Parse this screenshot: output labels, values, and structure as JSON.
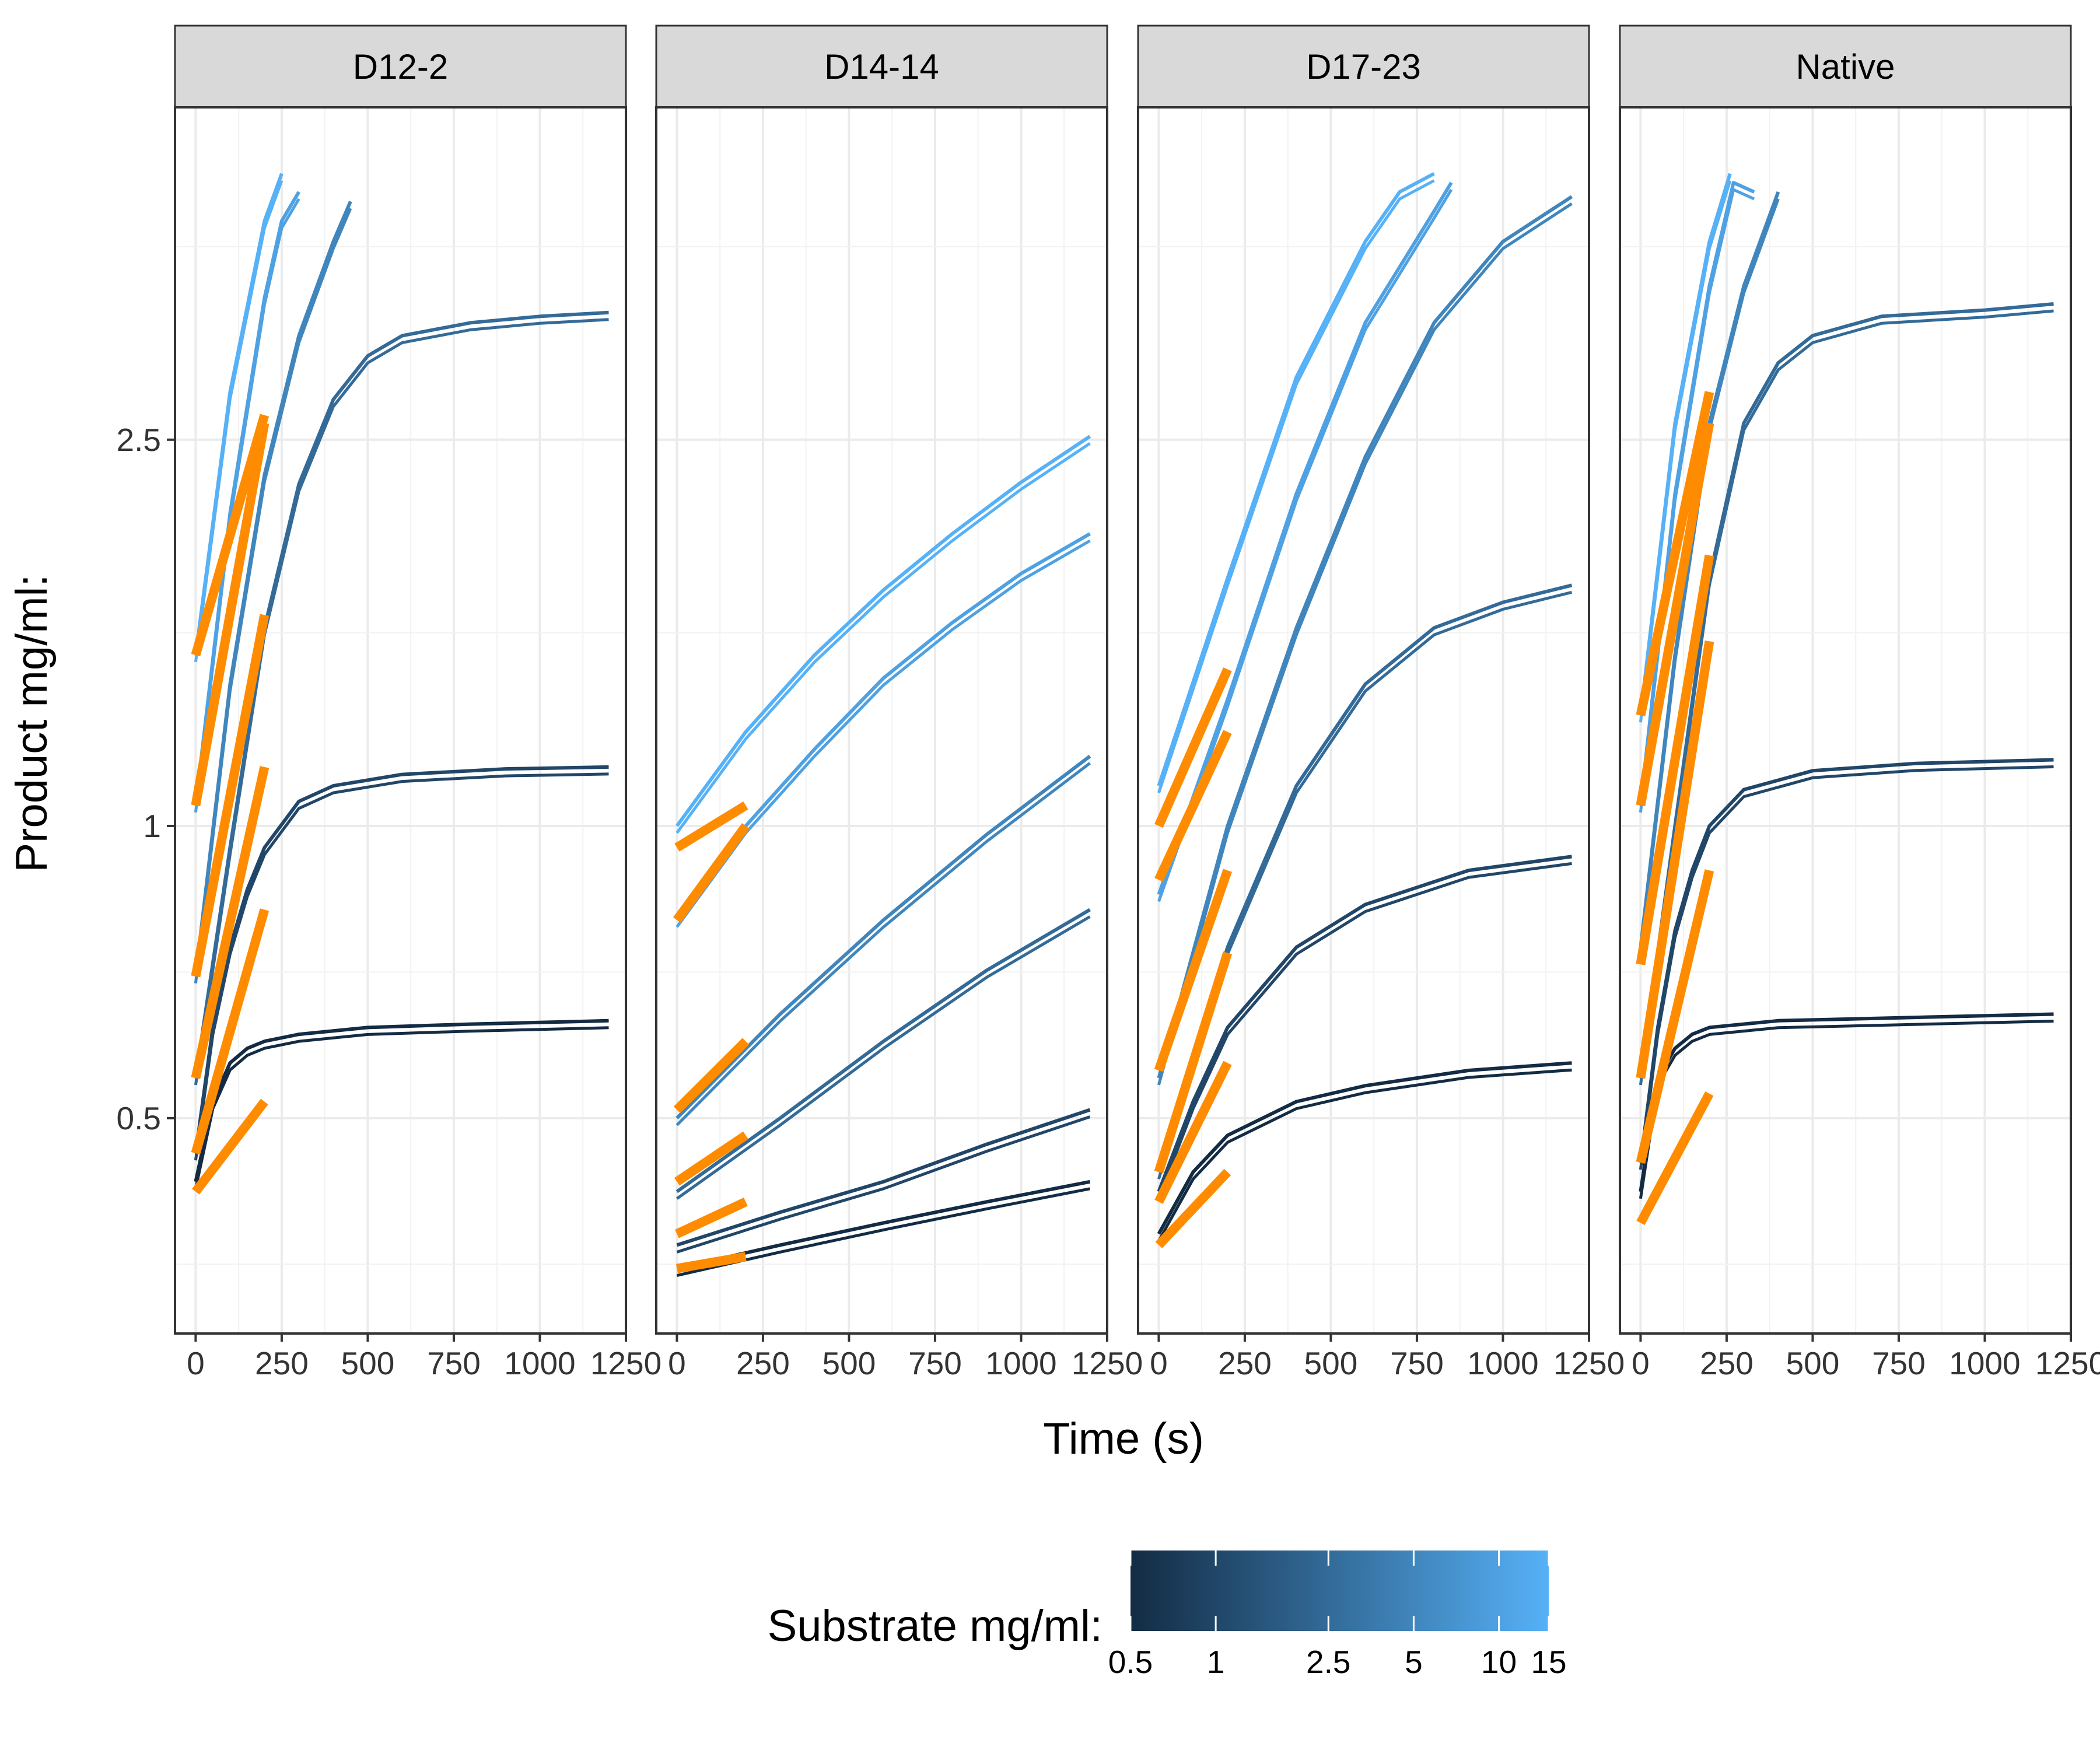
{
  "chart_data": {
    "type": "line",
    "facets": [
      "D12-2",
      "D14-14",
      "D17-23",
      "Native"
    ],
    "xlabel": "Time (s)",
    "ylabel": "Product mg/ml:",
    "x_ticks": [
      "0",
      "250",
      "500",
      "750",
      "1000",
      "1250"
    ],
    "x_tick_values": [
      0,
      250,
      500,
      750,
      1000,
      1250
    ],
    "xlim": [
      -60,
      1250
    ],
    "y_scale": "log",
    "y_ticks": [
      "0.5",
      "1",
      "2.5"
    ],
    "y_tick_values": [
      0.5,
      1,
      2.5
    ],
    "ylim": [
      0.3,
      5.5
    ],
    "grid": true,
    "legend": {
      "title": "Substrate mg/ml:",
      "position": "bottom",
      "type": "colorbar",
      "scale": "log",
      "low_color": "#132B43",
      "high_color": "#56B1F7",
      "ticks": [
        "0.5",
        "1",
        "2.5",
        "5",
        "10",
        "15"
      ],
      "tick_values": [
        0.5,
        1,
        2.5,
        5,
        10,
        15
      ]
    },
    "fit_color": "#FF8C00",
    "panels": [
      {
        "facet": "D12-2",
        "series": [
          {
            "substrate": 0.5,
            "points": [
              [
                0,
                0.43
              ],
              [
                50,
                0.52
              ],
              [
                100,
                0.57
              ],
              [
                150,
                0.59
              ],
              [
                200,
                0.6
              ],
              [
                300,
                0.61
              ],
              [
                500,
                0.62
              ],
              [
                800,
                0.625
              ],
              [
                1200,
                0.63
              ]
            ],
            "fit": [
              [
                0,
                0.42
              ],
              [
                200,
                0.52
              ]
            ]
          },
          {
            "substrate": 1,
            "points": [
              [
                0,
                0.46
              ],
              [
                50,
                0.62
              ],
              [
                100,
                0.75
              ],
              [
                150,
                0.86
              ],
              [
                200,
                0.95
              ],
              [
                300,
                1.06
              ],
              [
                400,
                1.1
              ],
              [
                600,
                1.13
              ],
              [
                900,
                1.145
              ],
              [
                1200,
                1.15
              ]
            ],
            "fit": [
              [
                0,
                0.46
              ],
              [
                200,
                0.82
              ]
            ]
          },
          {
            "substrate": 2.5,
            "points": [
              [
                0,
                0.55
              ],
              [
                100,
                0.95
              ],
              [
                200,
                1.6
              ],
              [
                300,
                2.25
              ],
              [
                400,
                2.75
              ],
              [
                500,
                3.05
              ],
              [
                600,
                3.2
              ],
              [
                800,
                3.3
              ],
              [
                1000,
                3.35
              ],
              [
                1200,
                3.38
              ]
            ],
            "fit": [
              [
                0,
                0.55
              ],
              [
                200,
                1.15
              ]
            ]
          },
          {
            "substrate": 5,
            "points": [
              [
                0,
                0.7
              ],
              [
                100,
                1.4
              ],
              [
                200,
                2.3
              ],
              [
                300,
                3.2
              ],
              [
                400,
                4.0
              ],
              [
                450,
                4.4
              ]
            ],
            "fit": [
              [
                0,
                0.7
              ],
              [
                200,
                1.65
              ]
            ]
          },
          {
            "substrate": 10,
            "points": [
              [
                0,
                1.05
              ],
              [
                100,
                2.1
              ],
              [
                200,
                3.5
              ],
              [
                250,
                4.2
              ],
              [
                300,
                4.5
              ]
            ],
            "fit": [
              [
                0,
                1.05
              ],
              [
                200,
                2.6
              ]
            ]
          },
          {
            "substrate": 15,
            "points": [
              [
                0,
                1.5
              ],
              [
                100,
                2.8
              ],
              [
                200,
                4.2
              ],
              [
                250,
                4.7
              ]
            ],
            "fit": [
              [
                0,
                1.5
              ],
              [
                200,
                2.65
              ]
            ]
          }
        ]
      },
      {
        "facet": "D14-14",
        "series": [
          {
            "substrate": 0.5,
            "points": [
              [
                0,
                0.35
              ],
              [
                300,
                0.37
              ],
              [
                600,
                0.39
              ],
              [
                900,
                0.41
              ],
              [
                1200,
                0.43
              ]
            ],
            "fit": [
              [
                0,
                0.35
              ],
              [
                200,
                0.36
              ]
            ]
          },
          {
            "substrate": 1,
            "points": [
              [
                0,
                0.37
              ],
              [
                300,
                0.4
              ],
              [
                600,
                0.43
              ],
              [
                900,
                0.47
              ],
              [
                1200,
                0.51
              ]
            ],
            "fit": [
              [
                0,
                0.38
              ],
              [
                200,
                0.41
              ]
            ]
          },
          {
            "substrate": 2.5,
            "points": [
              [
                0,
                0.42
              ],
              [
                300,
                0.5
              ],
              [
                600,
                0.6
              ],
              [
                900,
                0.71
              ],
              [
                1200,
                0.82
              ]
            ],
            "fit": [
              [
                0,
                0.43
              ],
              [
                200,
                0.48
              ]
            ]
          },
          {
            "substrate": 5,
            "points": [
              [
                0,
                0.5
              ],
              [
                300,
                0.64
              ],
              [
                600,
                0.8
              ],
              [
                900,
                0.98
              ],
              [
                1200,
                1.18
              ]
            ],
            "fit": [
              [
                0,
                0.51
              ],
              [
                200,
                0.6
              ]
            ]
          },
          {
            "substrate": 10,
            "points": [
              [
                0,
                0.8
              ],
              [
                200,
                1.0
              ],
              [
                400,
                1.2
              ],
              [
                600,
                1.42
              ],
              [
                800,
                1.62
              ],
              [
                1000,
                1.82
              ],
              [
                1200,
                2.0
              ]
            ],
            "fit": [
              [
                0,
                0.8
              ],
              [
                200,
                1.0
              ]
            ]
          },
          {
            "substrate": 15,
            "points": [
              [
                0,
                1.0
              ],
              [
                200,
                1.25
              ],
              [
                400,
                1.5
              ],
              [
                600,
                1.75
              ],
              [
                800,
                2.0
              ],
              [
                1000,
                2.26
              ],
              [
                1200,
                2.52
              ]
            ],
            "fit": [
              [
                0,
                0.95
              ],
              [
                200,
                1.05
              ]
            ]
          }
        ]
      },
      {
        "facet": "D17-23",
        "series": [
          {
            "substrate": 0.5,
            "points": [
              [
                0,
                0.38
              ],
              [
                100,
                0.44
              ],
              [
                200,
                0.48
              ],
              [
                400,
                0.52
              ],
              [
                600,
                0.54
              ],
              [
                900,
                0.56
              ],
              [
                1200,
                0.57
              ]
            ],
            "fit": [
              [
                0,
                0.37
              ],
              [
                200,
                0.44
              ]
            ]
          },
          {
            "substrate": 1,
            "points": [
              [
                0,
                0.42
              ],
              [
                100,
                0.52
              ],
              [
                200,
                0.62
              ],
              [
                400,
                0.75
              ],
              [
                600,
                0.83
              ],
              [
                900,
                0.9
              ],
              [
                1200,
                0.93
              ]
            ],
            "fit": [
              [
                0,
                0.41
              ],
              [
                200,
                0.57
              ]
            ]
          },
          {
            "substrate": 2.5,
            "points": [
              [
                0,
                0.44
              ],
              [
                200,
                0.75
              ],
              [
                400,
                1.1
              ],
              [
                600,
                1.4
              ],
              [
                800,
                1.6
              ],
              [
                1000,
                1.7
              ],
              [
                1200,
                1.77
              ]
            ],
            "fit": [
              [
                0,
                0.44
              ],
              [
                200,
                0.74
              ]
            ]
          },
          {
            "substrate": 5,
            "points": [
              [
                0,
                0.55
              ],
              [
                200,
                1.0
              ],
              [
                400,
                1.6
              ],
              [
                600,
                2.4
              ],
              [
                800,
                3.3
              ],
              [
                1000,
                4.0
              ],
              [
                1200,
                4.45
              ]
            ],
            "fit": [
              [
                0,
                0.56
              ],
              [
                200,
                0.9
              ]
            ]
          },
          {
            "substrate": 10,
            "points": [
              [
                0,
                0.85
              ],
              [
                200,
                1.35
              ],
              [
                400,
                2.2
              ],
              [
                600,
                3.3
              ],
              [
                800,
                4.3
              ],
              [
                850,
                4.6
              ]
            ],
            "fit": [
              [
                0,
                0.88
              ],
              [
                200,
                1.25
              ]
            ]
          },
          {
            "substrate": 15,
            "points": [
              [
                0,
                1.1
              ],
              [
                200,
                1.8
              ],
              [
                400,
                2.9
              ],
              [
                600,
                4.0
              ],
              [
                700,
                4.5
              ],
              [
                800,
                4.7
              ]
            ],
            "fit": [
              [
                0,
                1.0
              ],
              [
                200,
                1.45
              ]
            ]
          }
        ]
      },
      {
        "facet": "Native",
        "series": [
          {
            "substrate": 0.5,
            "points": [
              [
                0,
                0.42
              ],
              [
                50,
                0.55
              ],
              [
                100,
                0.59
              ],
              [
                150,
                0.61
              ],
              [
                200,
                0.62
              ],
              [
                400,
                0.63
              ],
              [
                800,
                0.635
              ],
              [
                1200,
                0.64
              ]
            ],
            "fit": [
              [
                0,
                0.39
              ],
              [
                200,
                0.53
              ]
            ]
          },
          {
            "substrate": 1,
            "points": [
              [
                0,
                0.45
              ],
              [
                50,
                0.62
              ],
              [
                100,
                0.78
              ],
              [
                150,
                0.9
              ],
              [
                200,
                1.0
              ],
              [
                300,
                1.09
              ],
              [
                500,
                1.14
              ],
              [
                800,
                1.16
              ],
              [
                1200,
                1.17
              ]
            ],
            "fit": [
              [
                0,
                0.45
              ],
              [
                200,
                0.9
              ]
            ]
          },
          {
            "substrate": 2.5,
            "points": [
              [
                0,
                0.55
              ],
              [
                100,
                1.0
              ],
              [
                200,
                1.8
              ],
              [
                300,
                2.6
              ],
              [
                400,
                3.0
              ],
              [
                500,
                3.2
              ],
              [
                700,
                3.35
              ],
              [
                1000,
                3.4
              ],
              [
                1200,
                3.45
              ]
            ],
            "fit": [
              [
                0,
                0.55
              ],
              [
                200,
                1.55
              ]
            ]
          },
          {
            "substrate": 5,
            "points": [
              [
                0,
                0.75
              ],
              [
                100,
                1.5
              ],
              [
                200,
                2.6
              ],
              [
                300,
                3.6
              ],
              [
                400,
                4.5
              ]
            ],
            "fit": [
              [
                0,
                0.72
              ],
              [
                200,
                1.9
              ]
            ]
          },
          {
            "substrate": 10,
            "points": [
              [
                0,
                1.05
              ],
              [
                100,
                2.2
              ],
              [
                200,
                3.6
              ],
              [
                270,
                4.6
              ],
              [
                330,
                4.5
              ]
            ],
            "fit": [
              [
                0,
                1.05
              ],
              [
                200,
                2.6
              ]
            ]
          },
          {
            "substrate": 15,
            "points": [
              [
                0,
                1.3
              ],
              [
                100,
                2.6
              ],
              [
                200,
                4.0
              ],
              [
                260,
                4.7
              ]
            ],
            "fit": [
              [
                0,
                1.3
              ],
              [
                200,
                2.8
              ]
            ]
          }
        ]
      }
    ]
  }
}
